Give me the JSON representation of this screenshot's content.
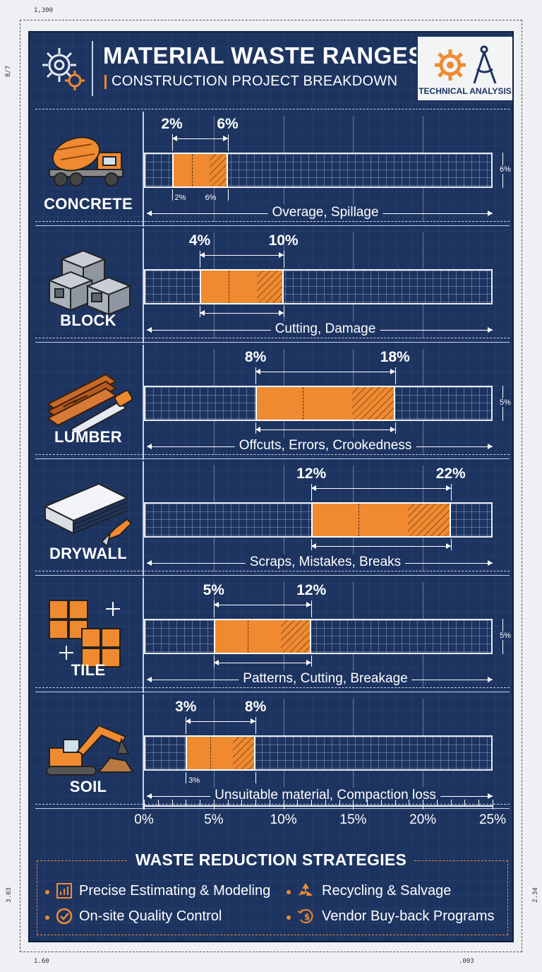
{
  "frame": {
    "top_mark": "1,300",
    "bottom_left_mark": "1.60",
    "bottom_right_mark": ".003",
    "left_top_mark": "8/7",
    "left_bottom_mark": "3.03",
    "right_bottom_mark": "2.34"
  },
  "header": {
    "title": "MATERIAL WASTE RANGES",
    "subtitle": "CONSTRUCTION PROJECT BREAKDOWN",
    "badge": "TECHNICAL ANALYSIS",
    "icons": [
      "gear-icon",
      "gear-compass-icon"
    ]
  },
  "colors": {
    "background": "#1d3461",
    "bar": "#f08a30",
    "line": "#c8d2e6",
    "text": "#ffffff"
  },
  "chart_data": {
    "type": "bar",
    "orientation": "horizontal-range",
    "xlim": [
      0,
      25
    ],
    "x_ticks": [
      "0%",
      "5%",
      "10%",
      "15%",
      "20%",
      "25%"
    ],
    "categories": [
      "CONCRETE",
      "BLOCK",
      "LUMBER",
      "DRYWALL",
      "TILE",
      "SOIL"
    ],
    "series": [
      {
        "ranges": [
          {
            "material": "CONCRETE",
            "min": 2,
            "max": 6,
            "min_label": "2%",
            "max_label": "6%",
            "causes": "Overage, Spillage",
            "dim_min": "2%",
            "dim_max": "6%",
            "side_note": "6%",
            "icon": "concrete-mixer-truck-icon"
          },
          {
            "material": "BLOCK",
            "min": 4,
            "max": 10,
            "min_label": "4%",
            "max_label": "10%",
            "causes": "Cutting, Damage",
            "icon": "concrete-blocks-icon"
          },
          {
            "material": "LUMBER",
            "min": 8,
            "max": 18,
            "min_label": "8%",
            "max_label": "18%",
            "causes": "Offcuts, Errors, Crookedness",
            "side_note": "5%",
            "icon": "lumber-saw-icon"
          },
          {
            "material": "DRYWALL",
            "min": 12,
            "max": 22,
            "min_label": "12%",
            "max_label": "22%",
            "causes": "Scraps, Mistakes, Breaks",
            "icon": "drywall-knife-icon"
          },
          {
            "material": "TILE",
            "min": 5,
            "max": 12,
            "min_label": "5%",
            "max_label": "12%",
            "causes": "Patterns, Cutting, Breakage",
            "side_note": "5%",
            "icon": "tiles-icon"
          },
          {
            "material": "SOIL",
            "min": 3,
            "max": 8,
            "min_label": "3%",
            "max_label": "8%",
            "causes": "Unsuitable material, Compaction loss",
            "dim_min": "3%",
            "icon": "excavator-icon"
          }
        ]
      }
    ]
  },
  "strategies": {
    "title": "WASTE REDUCTION STRATEGIES",
    "items": [
      {
        "label": "Precise Estimating & Modeling",
        "icon": "chart-icon"
      },
      {
        "label": "Recycling & Salvage",
        "icon": "recycle-icon"
      },
      {
        "label": "On-site Quality Control",
        "icon": "check-circle-icon"
      },
      {
        "label": "Vendor Buy-back Programs",
        "icon": "money-return-icon"
      }
    ]
  }
}
